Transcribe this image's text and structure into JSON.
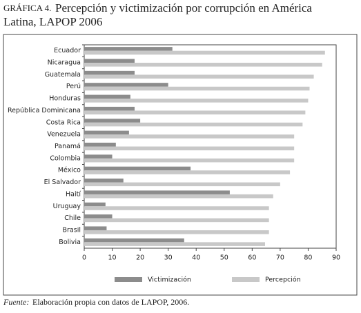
{
  "chart_data": {
    "type": "hbar",
    "title_label": "GRÁFICA 4.",
    "title": "Percepción y victimización por corrupción en América",
    "title_line2": "Latina, LAPOP 2006",
    "categories": [
      "Ecuador",
      "Nicaragua",
      "Guatemala",
      "Perú",
      "Honduras",
      "República Dominicana",
      "Costa Rica",
      "Venezuela",
      "Panamá",
      "Colombia",
      "México",
      "El Salvador",
      "Haití",
      "Uruguay",
      "Chile",
      "Brasil",
      "Bolivia"
    ],
    "series": [
      {
        "name": "Victimización",
        "color": "#8c8c8c",
        "values": [
          31.5,
          18,
          18,
          30,
          16.5,
          18,
          20,
          16,
          11.3,
          10,
          38,
          14,
          52,
          7.6,
          10,
          8,
          35.7
        ]
      },
      {
        "name": "Percepción",
        "color": "#c8c8c8",
        "values": [
          86,
          85,
          82,
          80.5,
          80,
          79,
          78,
          75,
          75,
          75,
          73.5,
          70,
          67.5,
          66,
          66,
          66,
          64.6
        ]
      }
    ],
    "xlim": [
      0,
      90
    ],
    "xticks": [
      0,
      10,
      20,
      30,
      40,
      50,
      60,
      70,
      80,
      90
    ],
    "source_label": "Fuente:",
    "source": "Elaboración propia con datos de LAPOP, 2006."
  }
}
